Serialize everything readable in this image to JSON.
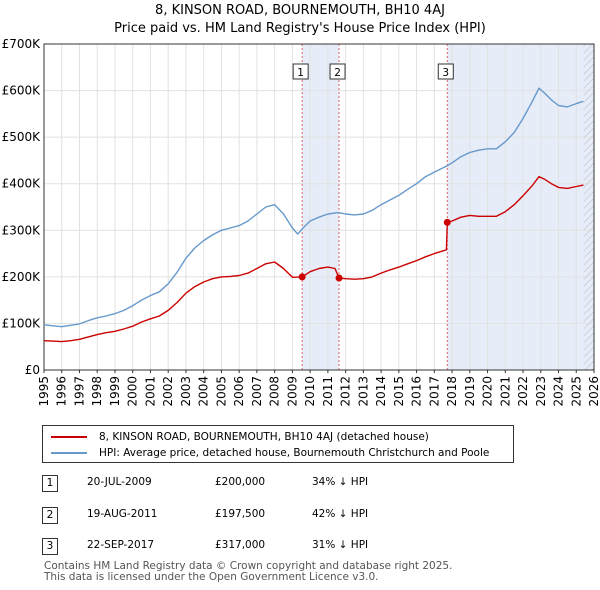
{
  "chart_data": {
    "type": "line",
    "title": "8, KINSON ROAD, BOURNEMOUTH, BH10 4AJ",
    "subtitle": "Price paid vs. HM Land Registry's House Price Index (HPI)",
    "xlabel": "",
    "ylabel": "",
    "xlim": [
      1995,
      2026
    ],
    "ylim": [
      0,
      700000
    ],
    "y_ticks": [
      0,
      100000,
      200000,
      300000,
      400000,
      500000,
      600000,
      700000
    ],
    "y_tick_labels": [
      "£0",
      "£100K",
      "£200K",
      "£300K",
      "£400K",
      "£500K",
      "£600K",
      "£700K"
    ],
    "x_ticks": [
      1995,
      1996,
      1997,
      1998,
      1999,
      2000,
      2001,
      2002,
      2003,
      2004,
      2005,
      2006,
      2007,
      2008,
      2009,
      2010,
      2011,
      2012,
      2013,
      2014,
      2015,
      2016,
      2017,
      2018,
      2019,
      2020,
      2021,
      2022,
      2023,
      2024,
      2025,
      2026
    ],
    "x_tick_labels": [
      "1995",
      "1996",
      "1997",
      "1998",
      "1999",
      "2000",
      "2001",
      "2002",
      "2003",
      "2004",
      "2005",
      "2006",
      "2007",
      "2008",
      "2009",
      "2010",
      "2011",
      "2012",
      "2013",
      "2014",
      "2015",
      "2016",
      "2017",
      "2018",
      "2019",
      "2020",
      "2021",
      "2022",
      "2023",
      "2024",
      "2025",
      "2026"
    ],
    "grid": true,
    "series": [
      {
        "name": "HPI: Average price, detached house, Bournemouth Christchurch and Poole",
        "color": "#6699cc",
        "points": [
          [
            1995.0,
            97000
          ],
          [
            1995.5,
            95000
          ],
          [
            1996.0,
            93000
          ],
          [
            1996.5,
            96000
          ],
          [
            1997.0,
            99000
          ],
          [
            1997.5,
            106000
          ],
          [
            1998.0,
            112000
          ],
          [
            1998.5,
            116000
          ],
          [
            1999.0,
            121000
          ],
          [
            1999.5,
            128000
          ],
          [
            2000.0,
            138000
          ],
          [
            2000.5,
            150000
          ],
          [
            2001.0,
            160000
          ],
          [
            2001.5,
            168000
          ],
          [
            2002.0,
            185000
          ],
          [
            2002.5,
            210000
          ],
          [
            2003.0,
            240000
          ],
          [
            2003.5,
            262000
          ],
          [
            2004.0,
            278000
          ],
          [
            2004.5,
            290000
          ],
          [
            2005.0,
            300000
          ],
          [
            2005.5,
            305000
          ],
          [
            2006.0,
            310000
          ],
          [
            2006.5,
            320000
          ],
          [
            2007.0,
            335000
          ],
          [
            2007.5,
            350000
          ],
          [
            2008.0,
            355000
          ],
          [
            2008.5,
            335000
          ],
          [
            2009.0,
            305000
          ],
          [
            2009.3,
            292000
          ],
          [
            2009.6,
            305000
          ],
          [
            2010.0,
            320000
          ],
          [
            2010.5,
            328000
          ],
          [
            2011.0,
            335000
          ],
          [
            2011.6,
            338000
          ],
          [
            2012.0,
            335000
          ],
          [
            2012.5,
            333000
          ],
          [
            2013.0,
            335000
          ],
          [
            2013.5,
            343000
          ],
          [
            2014.0,
            355000
          ],
          [
            2014.5,
            365000
          ],
          [
            2015.0,
            375000
          ],
          [
            2015.5,
            388000
          ],
          [
            2016.0,
            400000
          ],
          [
            2016.5,
            415000
          ],
          [
            2017.0,
            425000
          ],
          [
            2017.7,
            438000
          ],
          [
            2018.0,
            445000
          ],
          [
            2018.5,
            458000
          ],
          [
            2019.0,
            467000
          ],
          [
            2019.5,
            472000
          ],
          [
            2020.0,
            475000
          ],
          [
            2020.5,
            475000
          ],
          [
            2021.0,
            490000
          ],
          [
            2021.5,
            510000
          ],
          [
            2022.0,
            540000
          ],
          [
            2022.5,
            575000
          ],
          [
            2022.9,
            605000
          ],
          [
            2023.2,
            595000
          ],
          [
            2023.6,
            580000
          ],
          [
            2024.0,
            568000
          ],
          [
            2024.5,
            565000
          ],
          [
            2025.0,
            572000
          ],
          [
            2025.4,
            577000
          ]
        ]
      },
      {
        "name": "8, KINSON ROAD, BOURNEMOUTH, BH10 4AJ (detached house)",
        "color": "#cc0000",
        "points": [
          [
            1995.0,
            63000
          ],
          [
            1995.5,
            62000
          ],
          [
            1996.0,
            61000
          ],
          [
            1996.5,
            63000
          ],
          [
            1997.0,
            66000
          ],
          [
            1997.5,
            71000
          ],
          [
            1998.0,
            76000
          ],
          [
            1998.5,
            80000
          ],
          [
            1999.0,
            83000
          ],
          [
            1999.5,
            88000
          ],
          [
            2000.0,
            94000
          ],
          [
            2000.5,
            103000
          ],
          [
            2001.0,
            110000
          ],
          [
            2001.5,
            116000
          ],
          [
            2002.0,
            128000
          ],
          [
            2002.5,
            145000
          ],
          [
            2003.0,
            165000
          ],
          [
            2003.5,
            179000
          ],
          [
            2004.0,
            189000
          ],
          [
            2004.5,
            196000
          ],
          [
            2005.0,
            200000
          ],
          [
            2005.5,
            201000
          ],
          [
            2006.0,
            203000
          ],
          [
            2006.5,
            208000
          ],
          [
            2007.0,
            218000
          ],
          [
            2007.5,
            228000
          ],
          [
            2008.0,
            232000
          ],
          [
            2008.5,
            218000
          ],
          [
            2009.0,
            199000
          ],
          [
            2009.55,
            200000
          ],
          [
            2010.0,
            211000
          ],
          [
            2010.5,
            218000
          ],
          [
            2011.0,
            221000
          ],
          [
            2011.4,
            218000
          ],
          [
            2011.63,
            197500
          ],
          [
            2012.0,
            196000
          ],
          [
            2012.5,
            195000
          ],
          [
            2013.0,
            196000
          ],
          [
            2013.5,
            200000
          ],
          [
            2014.0,
            208000
          ],
          [
            2014.5,
            215000
          ],
          [
            2015.0,
            221000
          ],
          [
            2015.5,
            228000
          ],
          [
            2016.0,
            235000
          ],
          [
            2016.5,
            243000
          ],
          [
            2017.0,
            250000
          ],
          [
            2017.68,
            258000
          ],
          [
            2017.73,
            317000
          ],
          [
            2018.0,
            320000
          ],
          [
            2018.5,
            328000
          ],
          [
            2019.0,
            332000
          ],
          [
            2019.5,
            330000
          ],
          [
            2020.0,
            330000
          ],
          [
            2020.5,
            330000
          ],
          [
            2021.0,
            340000
          ],
          [
            2021.5,
            355000
          ],
          [
            2022.0,
            374000
          ],
          [
            2022.5,
            395000
          ],
          [
            2022.9,
            415000
          ],
          [
            2023.2,
            410000
          ],
          [
            2023.6,
            400000
          ],
          [
            2024.0,
            392000
          ],
          [
            2024.5,
            390000
          ],
          [
            2025.0,
            394000
          ],
          [
            2025.4,
            397000
          ]
        ]
      }
    ],
    "sales": [
      {
        "num": "1",
        "year": 2009.55,
        "date": "20-JUL-2009",
        "price_value": 200000,
        "price": "£200,000",
        "hpi": "34% ↓ HPI"
      },
      {
        "num": "2",
        "year": 2011.63,
        "date": "19-AUG-2011",
        "price_value": 197500,
        "price": "£197,500",
        "hpi": "42% ↓ HPI"
      },
      {
        "num": "3",
        "year": 2017.73,
        "date": "22-SEP-2017",
        "price_value": 317000,
        "price": "£317,000",
        "hpi": "31% ↓ HPI"
      }
    ],
    "shaded_ranges": [
      [
        2009.55,
        2011.63
      ],
      [
        2017.73,
        2026
      ]
    ],
    "forecast_start": 2025.42
  },
  "legend": {
    "items": [
      {
        "label": "8, KINSON ROAD, BOURNEMOUTH, BH10 4AJ (detached house)",
        "color": "#cc0000"
      },
      {
        "label": "HPI: Average price, detached house, Bournemouth Christchurch and Poole",
        "color": "#6699cc"
      }
    ]
  },
  "footer": {
    "line1": "Contains HM Land Registry data © Crown copyright and database right 2025.",
    "line2": "This data is licensed under the Open Government Licence v3.0."
  }
}
